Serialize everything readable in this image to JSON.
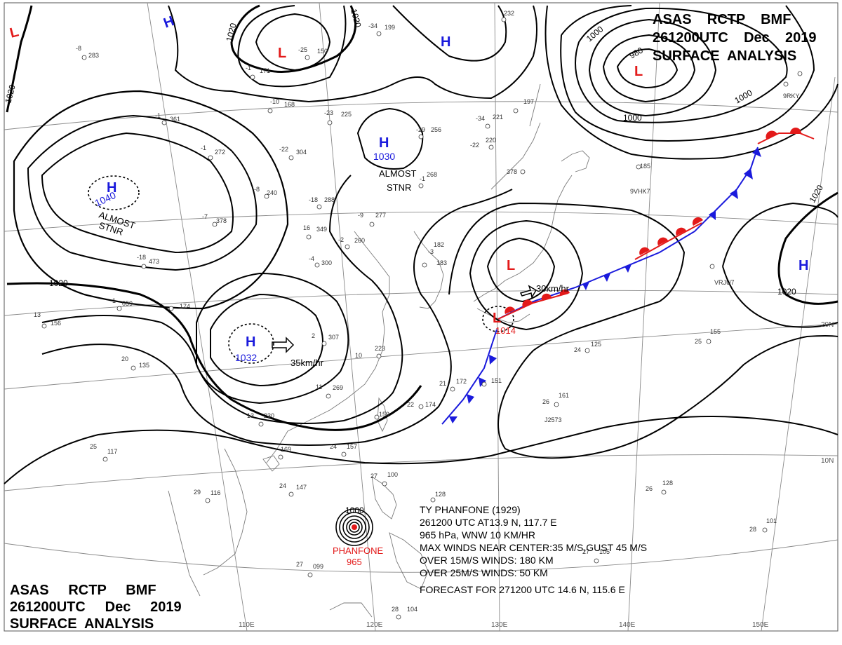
{
  "title_top": {
    "line1": "ASAS    RCTP    BMF",
    "line2": "261200UTC    Dec    2019",
    "line3": "SURFACE  ANALYSIS"
  },
  "title_bottom": {
    "line1": "ASAS     RCTP     BMF",
    "line2": "261200UTC     Dec     2019",
    "line3": "SURFACE  ANALYSIS"
  },
  "centers": {
    "high_mongolia": {
      "symbol": "H",
      "pressure": "1040",
      "note1": "ALMOST",
      "note2": "STNR"
    },
    "high_north": {
      "symbol": "H",
      "pressure": "1030",
      "note1": "ALMOST",
      "note2": "STNR"
    },
    "high_china": {
      "symbol": "H",
      "pressure": "1032",
      "motion": "35km/hr"
    },
    "high_topleft": {
      "symbol": "H"
    },
    "high_topmid": {
      "symbol": "H"
    },
    "high_east": {
      "symbol": "H"
    },
    "low_kamchatka": {
      "symbol": "L",
      "pressure": "980"
    },
    "low_japan_sea": {
      "symbol": "L"
    },
    "low_japan_south": {
      "symbol": "L",
      "pressure": "1014",
      "motion": "30km/hr"
    },
    "low_topleft": {
      "symbol": "L"
    },
    "low_north": {
      "symbol": "L"
    }
  },
  "isobar_labels": [
    "1020",
    "1020",
    "1020",
    "1020",
    "1020",
    "1020",
    "1000",
    "1000",
    "1000",
    "980",
    "1020",
    "1020"
  ],
  "typhoon": {
    "name": "PHANFONE",
    "pressure": "965",
    "iso_label": "1000",
    "line1": "TY  PHANFONE  (1929)",
    "line2": "261200 UTC   AT13.9 N, 117.7 E",
    "line3": "965 hPa, WNW  10 KM/HR",
    "line4": "MAX WINDS NEAR CENTER:35 M/S,GUST 45 M/S",
    "line5": "OVER 15M/S WINDS: 180 KM",
    "line6": "OVER 25M/S WINDS: 50 KM",
    "line7": "FORECAST FOR 271200 UTC 14.6 N, 115.6 E"
  },
  "coordinates": {
    "lon110": "110E",
    "lon120": "120E",
    "lon130": "130E",
    "lon140": "140E",
    "lon150": "150E",
    "lat20": "20N",
    "lat10": "10N"
  },
  "stations": [
    {
      "t": "-8",
      "p": "283"
    },
    {
      "t": "-25",
      "p": "150"
    },
    {
      "t": "-34",
      "p": "199"
    },
    {
      "t": "-1",
      "p": "171"
    },
    {
      "t": "-10",
      "p": "168"
    },
    {
      "t": "-23",
      "p": "225"
    },
    {
      "t": "-34",
      "p": "221"
    },
    {
      "t": "-22",
      "p": "220"
    },
    {
      "t": "-29",
      "p": "256"
    },
    {
      "t": "-22",
      "p": "304"
    },
    {
      "t": "-1",
      "p": "361"
    },
    {
      "t": "-1",
      "p": "272"
    },
    {
      "t": "-8",
      "p": "240"
    },
    {
      "t": "-18",
      "p": "288"
    },
    {
      "t": "-7",
      "p": "378"
    },
    {
      "t": "16",
      "p": "349"
    },
    {
      "t": "-9",
      "p": "277"
    },
    {
      "t": "-1",
      "p": "268"
    },
    {
      "t": "-2",
      "p": "260"
    },
    {
      "t": "-4",
      "p": "300"
    },
    {
      "t": "-3",
      "p": "183"
    },
    {
      "t": "-18",
      "p": "473"
    },
    {
      "t": "1",
      "p": "059"
    },
    {
      "t": "13",
      "p": "156"
    },
    {
      "t": "",
      "p": "174"
    },
    {
      "t": "2",
      "p": "307"
    },
    {
      "t": "10",
      "p": "223"
    },
    {
      "t": "20",
      "p": "135"
    },
    {
      "t": "11",
      "p": "269"
    },
    {
      "t": "13",
      "p": "230"
    },
    {
      "t": "22",
      "p": "174"
    },
    {
      "t": "",
      "p": "159"
    },
    {
      "t": "21",
      "p": "172"
    },
    {
      "t": "",
      "p": "151"
    },
    {
      "t": "24",
      "p": "125"
    },
    {
      "t": "25",
      "p": "155"
    },
    {
      "t": "26",
      "p": "161"
    },
    {
      "t": "24",
      "p": "157"
    },
    {
      "t": "",
      "p": "169"
    },
    {
      "t": "25",
      "p": "117"
    },
    {
      "t": "24",
      "p": "147"
    },
    {
      "t": "29",
      "p": "116"
    },
    {
      "t": "27",
      "p": "099"
    },
    {
      "t": "27",
      "p": "100"
    },
    {
      "t": "",
      "p": "128"
    },
    {
      "t": "26",
      "p": "128"
    },
    {
      "t": "28",
      "p": "101"
    },
    {
      "t": "27",
      "p": "105"
    },
    {
      "t": "28",
      "p": "104"
    },
    {
      "t": "",
      "p": "185"
    },
    {
      "t": "",
      "p": "378"
    },
    {
      "t": "",
      "p": "197"
    },
    {
      "t": "",
      "p": "232"
    },
    {
      "t": "",
      "p": "182"
    }
  ],
  "ship_ids": {
    "s1": "9VHK7",
    "s2": "VRJU7",
    "s3": "J2573",
    "s4": "9RKY"
  },
  "colors": {
    "high": "#1a1adc",
    "low": "#e31a1a",
    "isobar": "#000000",
    "coast": "#7a7a7a",
    "warm_front": "#e31a1a",
    "cold_front": "#1a1adc"
  }
}
